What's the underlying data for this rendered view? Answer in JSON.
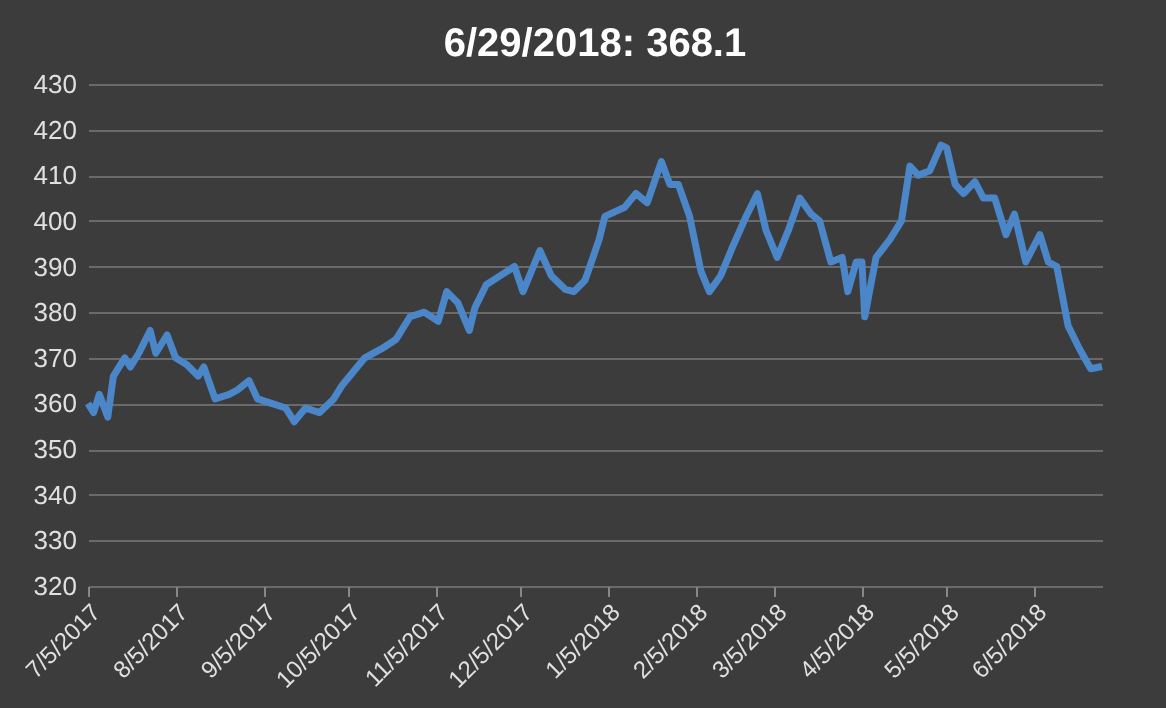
{
  "chart_data": {
    "type": "line",
    "title": "6/29/2018: 368.1",
    "x": [
      "2017-07-05",
      "2017-07-07",
      "2017-07-09",
      "2017-07-12",
      "2017-07-14",
      "2017-07-18",
      "2017-07-20",
      "2017-07-23",
      "2017-07-27",
      "2017-07-29",
      "2017-08-02",
      "2017-08-05",
      "2017-08-09",
      "2017-08-13",
      "2017-08-15",
      "2017-08-19",
      "2017-08-24",
      "2017-08-27",
      "2017-08-31",
      "2017-09-03",
      "2017-09-08",
      "2017-09-13",
      "2017-09-16",
      "2017-09-20",
      "2017-09-25",
      "2017-09-30",
      "2017-10-03",
      "2017-10-07",
      "2017-10-11",
      "2017-10-17",
      "2017-10-22",
      "2017-10-27",
      "2017-11-01",
      "2017-11-06",
      "2017-11-09",
      "2017-11-13",
      "2017-11-17",
      "2017-11-19",
      "2017-11-23",
      "2017-11-28",
      "2017-12-03",
      "2017-12-06",
      "2017-12-09",
      "2017-12-12",
      "2017-12-16",
      "2017-12-21",
      "2017-12-24",
      "2017-12-28",
      "2018-01-02",
      "2018-01-04",
      "2018-01-11",
      "2018-01-15",
      "2018-01-19",
      "2018-01-24",
      "2018-01-27",
      "2018-01-30",
      "2018-02-03",
      "2018-02-07",
      "2018-02-10",
      "2018-02-14",
      "2018-02-18",
      "2018-02-23",
      "2018-02-27",
      "2018-03-02",
      "2018-03-06",
      "2018-03-10",
      "2018-03-14",
      "2018-03-18",
      "2018-03-21",
      "2018-03-25",
      "2018-03-29",
      "2018-03-31",
      "2018-04-03",
      "2018-04-05",
      "2018-04-06",
      "2018-04-10",
      "2018-04-15",
      "2018-04-19",
      "2018-04-22",
      "2018-04-25",
      "2018-04-29",
      "2018-05-03",
      "2018-05-05",
      "2018-05-08",
      "2018-05-11",
      "2018-05-15",
      "2018-05-18",
      "2018-05-22",
      "2018-05-26",
      "2018-05-29",
      "2018-06-02",
      "2018-06-07",
      "2018-06-10",
      "2018-06-13",
      "2018-06-17",
      "2018-06-21",
      "2018-06-25",
      "2018-06-29"
    ],
    "series": [
      {
        "color": "#4a86c8",
        "values": [
          360,
          358,
          362,
          357,
          366,
          370,
          368,
          371,
          376,
          371,
          375,
          370,
          368.5,
          366,
          368,
          361,
          362,
          363,
          365,
          361,
          360,
          359,
          356,
          359,
          358,
          361,
          364,
          367,
          370,
          372,
          374,
          379,
          380,
          378,
          384.5,
          382,
          376,
          381,
          386,
          388,
          390,
          384.5,
          389,
          393.5,
          388,
          385,
          384.5,
          387,
          396,
          401,
          403,
          406,
          404,
          413,
          408,
          408,
          401,
          389,
          384.5,
          388,
          394,
          401,
          406,
          398,
          392,
          398,
          405,
          401.5,
          400,
          391,
          392,
          384.5,
          391,
          391,
          379,
          392,
          396,
          400,
          412,
          410,
          411,
          416.6,
          416,
          408,
          406,
          408.6,
          405,
          405,
          397,
          401.5,
          391,
          397,
          391,
          390,
          377,
          372,
          367.6,
          368.1
        ]
      }
    ],
    "xlim": [
      "2017-07-05",
      "2018-06-29"
    ],
    "xticks": [
      {
        "value": "2017-07-05",
        "label": "7/5/2017"
      },
      {
        "value": "2017-08-05",
        "label": "8/5/2017"
      },
      {
        "value": "2017-09-05",
        "label": "9/5/2017"
      },
      {
        "value": "2017-10-05",
        "label": "10/5/2017"
      },
      {
        "value": "2017-11-05",
        "label": "11/5/2017"
      },
      {
        "value": "2017-12-05",
        "label": "12/5/2017"
      },
      {
        "value": "2018-01-05",
        "label": "1/5/2018"
      },
      {
        "value": "2018-02-05",
        "label": "2/5/2018"
      },
      {
        "value": "2018-03-05",
        "label": "3/5/2018"
      },
      {
        "value": "2018-04-05",
        "label": "4/5/2018"
      },
      {
        "value": "2018-05-05",
        "label": "5/5/2018"
      },
      {
        "value": "2018-06-05",
        "label": "6/5/2018"
      }
    ],
    "ylim": [
      320,
      430
    ],
    "yticks": [
      320,
      330,
      340,
      350,
      360,
      370,
      380,
      390,
      400,
      410,
      420,
      430
    ],
    "grid": "y",
    "marker": "none",
    "line_style": "solid"
  }
}
